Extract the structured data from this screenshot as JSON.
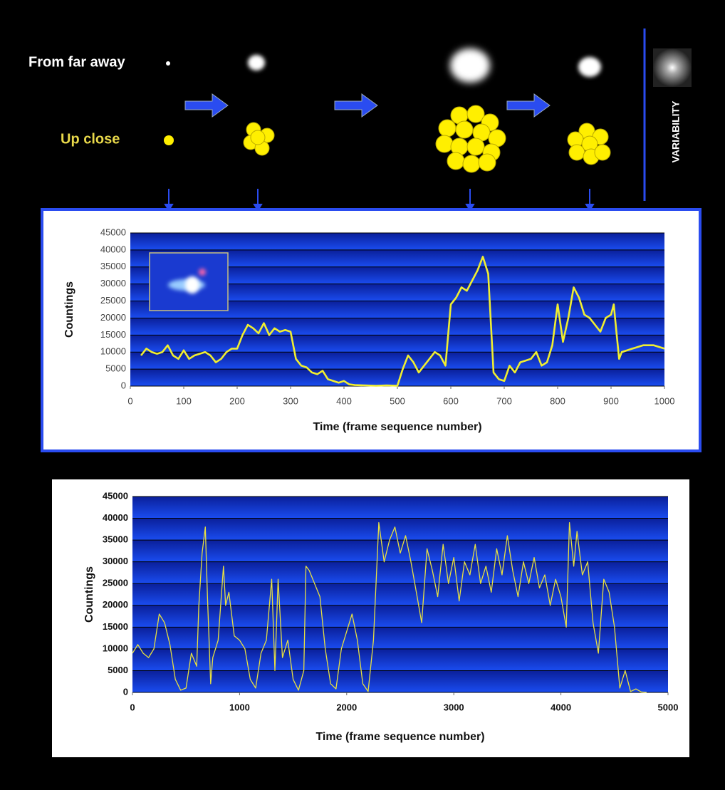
{
  "diagram": {
    "far": "From far away",
    "close": "Up close",
    "variability": "VARIABILITY"
  },
  "chart_data": [
    {
      "type": "line",
      "xlabel": "Time (frame sequence number)",
      "ylabel": "Countings",
      "color": "#f0ee30",
      "xlim": [
        0,
        1000
      ],
      "ylim": [
        0,
        45000
      ],
      "xticks": [
        0,
        100,
        200,
        300,
        400,
        500,
        600,
        700,
        800,
        900,
        1000
      ],
      "yticks": [
        0,
        5000,
        10000,
        15000,
        20000,
        25000,
        30000,
        35000,
        40000,
        45000
      ],
      "x": [
        20,
        30,
        40,
        50,
        60,
        70,
        80,
        90,
        100,
        110,
        120,
        130,
        140,
        150,
        160,
        170,
        180,
        190,
        200,
        210,
        220,
        230,
        240,
        250,
        260,
        270,
        280,
        290,
        300,
        310,
        320,
        330,
        340,
        350,
        360,
        370,
        380,
        390,
        400,
        410,
        420,
        440,
        460,
        480,
        500,
        510,
        520,
        530,
        540,
        550,
        560,
        570,
        580,
        590,
        600,
        610,
        620,
        630,
        640,
        650,
        660,
        670,
        680,
        690,
        700,
        710,
        720,
        730,
        740,
        750,
        760,
        770,
        780,
        790,
        800,
        810,
        820,
        830,
        840,
        850,
        860,
        870,
        880,
        890,
        900,
        905,
        910,
        915,
        920,
        940,
        960,
        980,
        1000
      ],
      "values": [
        9000,
        11000,
        10000,
        9500,
        10000,
        12000,
        9000,
        8000,
        10500,
        8000,
        9000,
        9500,
        10000,
        9000,
        7000,
        8000,
        10000,
        11000,
        11000,
        15000,
        18000,
        17000,
        15500,
        18500,
        15000,
        17000,
        16000,
        16500,
        16000,
        8000,
        6000,
        5500,
        4000,
        3500,
        4500,
        2000,
        1500,
        1000,
        1500,
        500,
        300,
        200,
        100,
        200,
        100,
        5000,
        9000,
        7000,
        4000,
        6000,
        8000,
        10000,
        9000,
        6000,
        24000,
        26000,
        29000,
        28000,
        31000,
        34000,
        38000,
        33000,
        4000,
        2000,
        1500,
        6000,
        4000,
        7000,
        7500,
        8000,
        10000,
        6000,
        7000,
        12000,
        24000,
        13000,
        20000,
        29000,
        26000,
        21000,
        20000,
        18000,
        16000,
        20000,
        21000,
        24000,
        16000,
        8000,
        10000,
        11000,
        12000,
        12000,
        11000
      ]
    },
    {
      "type": "line",
      "xlabel": "Time (frame sequence number)",
      "ylabel": "Countings",
      "color": "#e8e040",
      "xlim": [
        0,
        5000
      ],
      "ylim": [
        0,
        45000
      ],
      "xticks": [
        0,
        1000,
        2000,
        3000,
        4000,
        5000
      ],
      "yticks": [
        0,
        5000,
        10000,
        15000,
        20000,
        25000,
        30000,
        35000,
        40000,
        45000
      ],
      "x": [
        0,
        50,
        100,
        150,
        200,
        250,
        300,
        350,
        400,
        450,
        500,
        550,
        600,
        620,
        650,
        680,
        700,
        730,
        750,
        800,
        850,
        870,
        900,
        950,
        1000,
        1050,
        1100,
        1150,
        1200,
        1250,
        1300,
        1330,
        1360,
        1400,
        1450,
        1500,
        1550,
        1600,
        1620,
        1650,
        1700,
        1750,
        1800,
        1850,
        1900,
        1950,
        2000,
        2050,
        2100,
        2150,
        2200,
        2250,
        2300,
        2350,
        2400,
        2450,
        2500,
        2550,
        2600,
        2650,
        2700,
        2750,
        2800,
        2850,
        2900,
        2950,
        3000,
        3050,
        3100,
        3150,
        3200,
        3250,
        3300,
        3350,
        3400,
        3450,
        3500,
        3550,
        3600,
        3650,
        3700,
        3750,
        3800,
        3850,
        3900,
        3950,
        4000,
        4050,
        4080,
        4120,
        4150,
        4200,
        4250,
        4300,
        4350,
        4400,
        4450,
        4500,
        4550,
        4600,
        4650,
        4700,
        4750,
        4800
      ],
      "values": [
        9000,
        11000,
        9000,
        8000,
        10000,
        18000,
        16000,
        11000,
        3000,
        500,
        1000,
        9000,
        6000,
        20000,
        32000,
        38000,
        22000,
        2000,
        8000,
        12000,
        29000,
        20000,
        23000,
        13000,
        12000,
        10000,
        3000,
        1000,
        9000,
        12000,
        26000,
        5000,
        26000,
        8000,
        12000,
        3000,
        500,
        5000,
        29000,
        28000,
        25000,
        22000,
        10000,
        2000,
        800,
        10000,
        14000,
        18000,
        12000,
        2000,
        200,
        12000,
        39000,
        30000,
        35000,
        38000,
        32000,
        36000,
        30000,
        23000,
        16000,
        33000,
        28000,
        22000,
        34000,
        25000,
        31000,
        21000,
        30000,
        27000,
        34000,
        25000,
        29000,
        23000,
        33000,
        27000,
        36000,
        28000,
        22000,
        30000,
        25000,
        31000,
        24000,
        27000,
        20000,
        26000,
        22000,
        15000,
        39000,
        29000,
        37000,
        27000,
        30000,
        16000,
        9000,
        26000,
        23000,
        15000,
        1000,
        5000,
        200,
        800,
        100,
        0
      ]
    }
  ]
}
